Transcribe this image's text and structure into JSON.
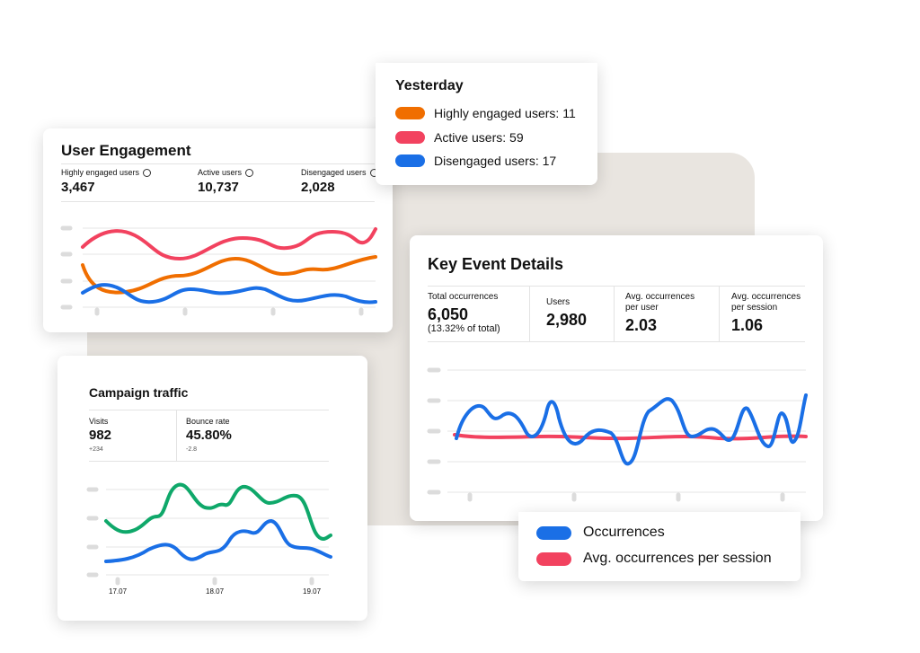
{
  "user_engagement": {
    "title": "User Engagement",
    "metrics": [
      {
        "label": "Highly engaged users",
        "value": "3,467"
      },
      {
        "label": "Active users",
        "value": "10,737"
      },
      {
        "label": "Disengaged users",
        "value": "2,028"
      }
    ]
  },
  "yesterday": {
    "title": "Yesterday",
    "items": [
      "Highly engaged users: 11",
      "Active users: 59",
      "Disengaged users: 17"
    ]
  },
  "key_event_details": {
    "title": "Key Event Details",
    "metrics": [
      {
        "label": "Total occurrences",
        "value": "6,050",
        "note": "(13.32% of total)"
      },
      {
        "label": "Users",
        "value": "2,980"
      },
      {
        "label": "Avg. occurrences per user",
        "value": "2.03"
      },
      {
        "label": "Avg. occurrences per session",
        "value": "1.06"
      }
    ],
    "legend": [
      "Occurrences",
      "Avg. occurrences per session"
    ]
  },
  "campaign_traffic": {
    "title": "Campaign traffic",
    "metrics": [
      {
        "label": "Visits",
        "value": "982",
        "change": "+234"
      },
      {
        "label": "Bounce rate",
        "value": "45.80%",
        "change": "-2.8"
      }
    ],
    "dates": [
      "17.07",
      "18.07",
      "19.07"
    ]
  }
}
